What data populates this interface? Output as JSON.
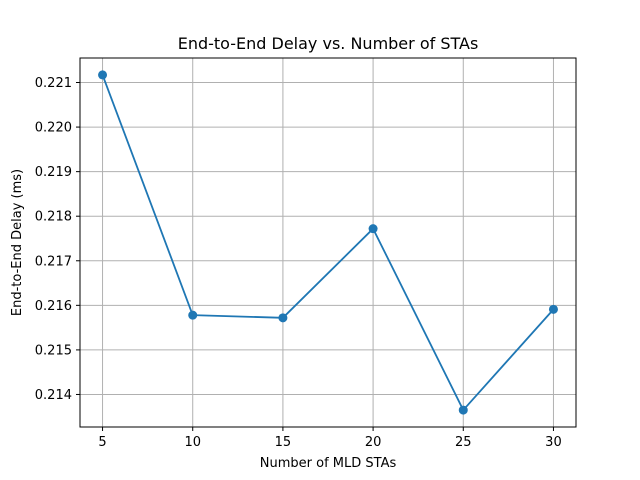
{
  "chart_data": {
    "type": "line",
    "title": "End-to-End Delay vs. Number of STAs",
    "xlabel": "Number of MLD STAs",
    "ylabel": "End-to-End Delay (ms)",
    "x": [
      5,
      10,
      15,
      20,
      25,
      30
    ],
    "series": [
      {
        "name": "End-to-End Delay",
        "values": [
          0.22117,
          0.21578,
          0.21572,
          0.21772,
          0.21365,
          0.21591
        ],
        "color": "#1f77b4",
        "marker": "circle"
      }
    ],
    "xticks": [
      5,
      10,
      15,
      20,
      25,
      30
    ],
    "xtick_labels": [
      "5",
      "10",
      "15",
      "20",
      "25",
      "30"
    ],
    "yticks": [
      0.214,
      0.215,
      0.216,
      0.217,
      0.218,
      0.219,
      0.22,
      0.221
    ],
    "ytick_labels": [
      "0.214",
      "0.215",
      "0.216",
      "0.217",
      "0.218",
      "0.219",
      "0.220",
      "0.221"
    ],
    "xlim": [
      3.75,
      31.25
    ],
    "ylim": [
      0.21327,
      0.22155
    ],
    "grid": true
  }
}
